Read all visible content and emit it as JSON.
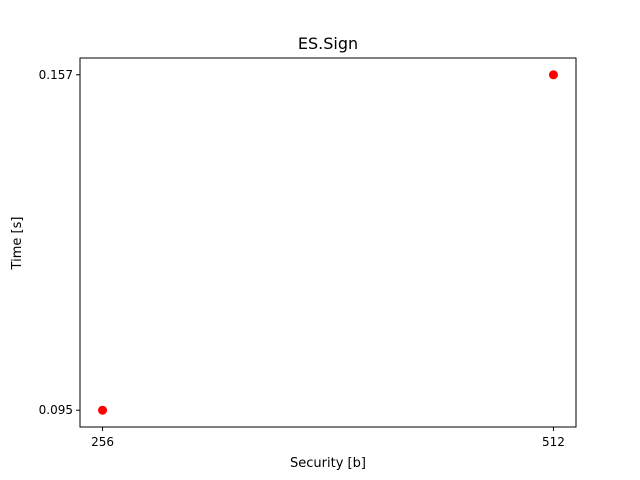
{
  "chart_data": {
    "type": "scatter",
    "title": "ES.Sign",
    "xlabel": "Security [b]",
    "ylabel": "Time [s]",
    "x": [
      256,
      512
    ],
    "y": [
      0.095,
      0.157
    ],
    "xticks": [
      256,
      512
    ],
    "xtick_labels": [
      "256",
      "512"
    ],
    "yticks": [
      0.095,
      0.157
    ],
    "ytick_labels": [
      "0.095",
      "0.157"
    ],
    "xlim": [
      243.2,
      524.8
    ],
    "ylim": [
      0.0919,
      0.1601
    ],
    "grid": false,
    "marker_color": "#ff0000"
  }
}
